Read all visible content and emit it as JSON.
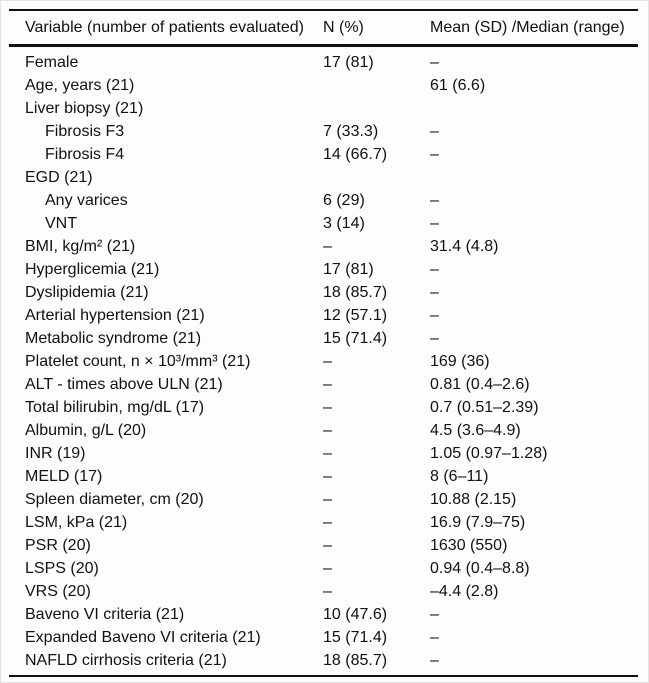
{
  "table": {
    "columns": [
      "Variable (number of patients evaluated)",
      "N (%)",
      "Mean (SD) /Median (range)"
    ],
    "rows": [
      {
        "variable": "Female",
        "indent": false,
        "n": "17 (81)",
        "mean": "–"
      },
      {
        "variable": "Age, years (21)",
        "indent": false,
        "n": "",
        "mean": "61 (6.6)"
      },
      {
        "variable": "Liver biopsy (21)",
        "indent": false,
        "n": "",
        "mean": ""
      },
      {
        "variable": "Fibrosis F3",
        "indent": true,
        "n": "7 (33.3)",
        "mean": "–"
      },
      {
        "variable": "Fibrosis F4",
        "indent": true,
        "n": "14 (66.7)",
        "mean": "–"
      },
      {
        "variable": "EGD (21)",
        "indent": false,
        "n": "",
        "mean": ""
      },
      {
        "variable": "Any varices",
        "indent": true,
        "n": "6 (29)",
        "mean": "–"
      },
      {
        "variable": "VNT",
        "indent": true,
        "n": "3 (14)",
        "mean": "–"
      },
      {
        "variable": "BMI, kg/m² (21)",
        "indent": false,
        "n": "–",
        "mean": "31.4 (4.8)"
      },
      {
        "variable": "Hyperglicemia (21)",
        "indent": false,
        "n": "17 (81)",
        "mean": "–"
      },
      {
        "variable": "Dyslipidemia (21)",
        "indent": false,
        "n": "18 (85.7)",
        "mean": "–"
      },
      {
        "variable": "Arterial hypertension (21)",
        "indent": false,
        "n": "12 (57.1)",
        "mean": "–"
      },
      {
        "variable": "Metabolic syndrome (21)",
        "indent": false,
        "n": "15 (71.4)",
        "mean": "–"
      },
      {
        "variable": "Platelet count, n × 10³/mm³ (21)",
        "indent": false,
        "n": "–",
        "mean": "169 (36)"
      },
      {
        "variable": "ALT - times above ULN (21)",
        "indent": false,
        "n": "–",
        "mean": "0.81 (0.4–2.6)"
      },
      {
        "variable": "Total bilirubin, mg/dL (17)",
        "indent": false,
        "n": "–",
        "mean": "0.7 (0.51–2.39)"
      },
      {
        "variable": "Albumin, g/L (20)",
        "indent": false,
        "n": "–",
        "mean": "4.5 (3.6–4.9)"
      },
      {
        "variable": "INR (19)",
        "indent": false,
        "n": "–",
        "mean": "1.05 (0.97–1.28)"
      },
      {
        "variable": "MELD (17)",
        "indent": false,
        "n": "–",
        "mean": "8 (6–11)"
      },
      {
        "variable": "Spleen diameter, cm (20)",
        "indent": false,
        "n": "–",
        "mean": "10.88 (2.15)"
      },
      {
        "variable": "LSM, kPa (21)",
        "indent": false,
        "n": "–",
        "mean": "16.9 (7.9–75)"
      },
      {
        "variable": "PSR (20)",
        "indent": false,
        "n": "–",
        "mean": "1630 (550)"
      },
      {
        "variable": "LSPS (20)",
        "indent": false,
        "n": "–",
        "mean": "0.94 (0.4–8.8)"
      },
      {
        "variable": "VRS (20)",
        "indent": false,
        "n": "–",
        "mean": "–4.4 (2.8)"
      },
      {
        "variable": "Baveno VI criteria (21)",
        "indent": false,
        "n": "10 (47.6)",
        "mean": "–"
      },
      {
        "variable": "Expanded Baveno VI criteria (21)",
        "indent": false,
        "n": "15 (71.4)",
        "mean": "–"
      },
      {
        "variable": "NAFLD cirrhosis criteria (21)",
        "indent": false,
        "n": "18 (85.7)",
        "mean": "–"
      }
    ]
  }
}
